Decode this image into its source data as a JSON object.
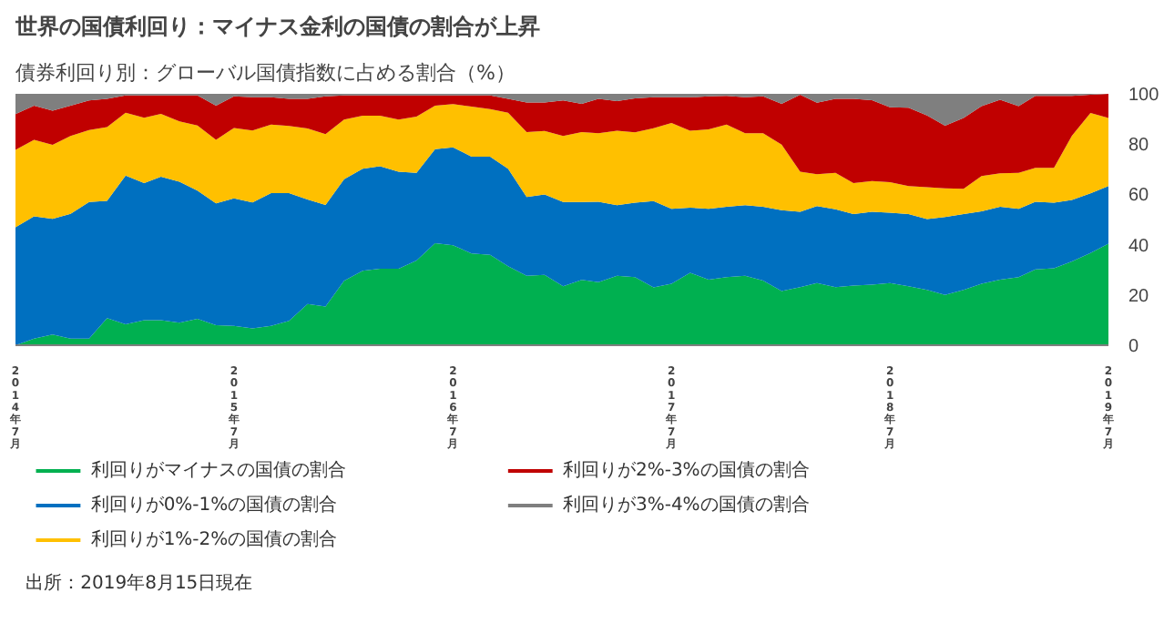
{
  "chart_data": {
    "type": "area",
    "stacked": true,
    "title": "世界の国債利回り：マイナス金利の国債の割合が上昇",
    "subtitle": "債券利回り別：グローバル国債指数に占める割合（%）",
    "annotations": [
      "出所：2019年8月15日現在"
    ],
    "x": [
      "2014-07",
      "2014-08",
      "2014-09",
      "2014-10",
      "2014-11",
      "2014-12",
      "2015-01",
      "2015-02",
      "2015-03",
      "2015-04",
      "2015-05",
      "2015-06",
      "2015-07",
      "2015-08",
      "2015-09",
      "2015-10",
      "2015-11",
      "2015-12",
      "2016-01",
      "2016-02",
      "2016-03",
      "2016-04",
      "2016-05",
      "2016-06",
      "2016-07",
      "2016-08",
      "2016-09",
      "2016-10",
      "2016-11",
      "2016-12",
      "2017-01",
      "2017-02",
      "2017-03",
      "2017-04",
      "2017-05",
      "2017-06",
      "2017-07",
      "2017-08",
      "2017-09",
      "2017-10",
      "2017-11",
      "2017-12",
      "2018-01",
      "2018-02",
      "2018-03",
      "2018-04",
      "2018-05",
      "2018-06",
      "2018-07",
      "2018-08",
      "2018-09",
      "2018-10",
      "2018-11",
      "2018-12",
      "2019-01",
      "2019-02",
      "2019-03",
      "2019-04",
      "2019-05",
      "2019-06",
      "2019-07"
    ],
    "series": [
      {
        "name": "利回りがマイナスの国債の割合",
        "color": "#00b050",
        "values": [
          0,
          2.6,
          4.3,
          2.6,
          2.6,
          10.8,
          8.3,
          10,
          10,
          9,
          10.5,
          8,
          7.7,
          6.7,
          7.7,
          9.7,
          16.4,
          15.4,
          25.6,
          29.6,
          30.4,
          30.4,
          33.7,
          40.6,
          39.8,
          36.5,
          36,
          31.4,
          27.6,
          28,
          23.5,
          26,
          25.1,
          27.6,
          27.1,
          23,
          24.5,
          28.8,
          26.1,
          27.1,
          27.6,
          25.7,
          21.6,
          23.1,
          24.7,
          23.1,
          23.7,
          24.1,
          24.7,
          23.5,
          22,
          20,
          22,
          24.5,
          26.1,
          27.1,
          30.2,
          30.6,
          33.3,
          36.7,
          40.4
        ]
      },
      {
        "name": "利回りが0%-1%の国債の割合",
        "color": "#0070c0",
        "values": [
          46.9,
          48.7,
          46,
          49.7,
          54.4,
          46.6,
          59.2,
          54.5,
          57,
          56,
          51,
          48.4,
          50.7,
          50.1,
          52.8,
          50.8,
          41.6,
          40.4,
          40.4,
          40.6,
          40.8,
          38.6,
          34.9,
          37.4,
          38.9,
          38.5,
          39,
          38.8,
          31.4,
          32,
          33.5,
          31,
          32,
          28.1,
          29.6,
          34.3,
          29.8,
          25.9,
          28.2,
          28,
          28.1,
          29.4,
          32.1,
          30,
          30.6,
          31,
          28.5,
          29,
          28,
          28.7,
          28.2,
          31,
          30.2,
          28.8,
          29,
          27.2,
          26.9,
          26.1,
          24.5,
          23.7,
          22.9
        ]
      },
      {
        "name": "利回りが1%-2%の国債の割合",
        "color": "#ffc000",
        "values": [
          30.8,
          30.4,
          29.4,
          30.9,
          28.6,
          29.4,
          25,
          26,
          25,
          24,
          25.9,
          25.3,
          28,
          28.6,
          27.3,
          26.7,
          28.2,
          28.2,
          23.8,
          21.1,
          20.1,
          20.8,
          22.3,
          17.3,
          17.2,
          19.9,
          18.9,
          22.3,
          25.8,
          25.2,
          26.2,
          27.8,
          27.2,
          29.6,
          28,
          29,
          34.1,
          30.6,
          31.6,
          32.7,
          28.6,
          29.2,
          26.1,
          15.9,
          12.7,
          14.5,
          12.3,
          12.2,
          12.2,
          11.1,
          12.7,
          11.4,
          10,
          14,
          13.3,
          14.3,
          13.5,
          13.9,
          25.5,
          32,
          27.1
        ]
      },
      {
        "name": "利回りが2%-3%の国債の割合",
        "color": "#c00000",
        "values": [
          14.2,
          13.6,
          13.6,
          12.1,
          11.8,
          11.2,
          6.9,
          8.9,
          7.4,
          10.4,
          12,
          13.6,
          12.6,
          13.2,
          10.8,
          10.8,
          11.8,
          15,
          9.6,
          8.1,
          8.1,
          9.6,
          8.5,
          4.1,
          3.5,
          4.5,
          5.5,
          5.5,
          11.8,
          11.4,
          14.2,
          11.2,
          13.7,
          11.8,
          13.5,
          12.3,
          10.2,
          13.3,
          13.1,
          11.4,
          14.3,
          14.7,
          16.2,
          30.6,
          28.5,
          29.4,
          33.5,
          32.2,
          29.8,
          31.2,
          28.5,
          24.9,
          28.2,
          27.8,
          29.2,
          26.5,
          28.6,
          28.6,
          15.9,
          7.2,
          9.6
        ]
      },
      {
        "name": "利回りが3%-4%の国債の割合",
        "color": "#7f7f7f",
        "values": [
          8.1,
          4.7,
          6.7,
          4.7,
          2.6,
          2,
          0.6,
          0.6,
          0.6,
          0.6,
          0.6,
          4.7,
          1,
          1.4,
          1.4,
          2,
          2,
          1,
          0.6,
          0.6,
          0.6,
          0.6,
          0.6,
          0.6,
          0.6,
          0.6,
          0.6,
          2,
          3.4,
          3.4,
          2.6,
          4,
          2,
          2.9,
          1.8,
          1.4,
          1.4,
          1.4,
          1,
          0.8,
          1.4,
          1,
          4,
          0.4,
          3.5,
          2,
          2,
          2.5,
          5.3,
          5.5,
          8.6,
          12.7,
          9.6,
          4.9,
          2.4,
          4.9,
          0.8,
          0.8,
          0.8,
          0.4,
          0
        ]
      }
    ],
    "xlim": [
      "2014-07",
      "2019-07"
    ],
    "xticks": [
      {
        "value": "2014-07",
        "label": "2014年7月"
      },
      {
        "value": "2015-07",
        "label": "2015年7月"
      },
      {
        "value": "2016-07",
        "label": "2016年7月"
      },
      {
        "value": "2017-07",
        "label": "2017年7月"
      },
      {
        "value": "2018-07",
        "label": "2018年7月"
      },
      {
        "value": "2019-07",
        "label": "2019年7月"
      }
    ],
    "ylim": [
      0,
      100
    ],
    "yticks": [
      0,
      20,
      40,
      60,
      80,
      100
    ],
    "grid": false,
    "legend": "bottom"
  }
}
